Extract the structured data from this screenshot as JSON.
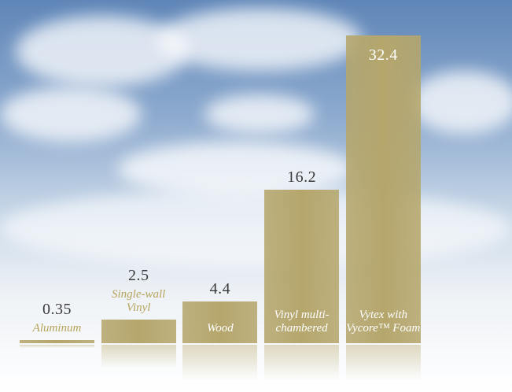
{
  "chart_data": {
    "type": "bar",
    "categories": [
      "Aluminum",
      "Single-wall Vinyl",
      "Wood",
      "Vinyl multi-chambered",
      "Vytex with Vycore™ Foam"
    ],
    "values": [
      0.35,
      2.5,
      4.4,
      16.2,
      32.4
    ],
    "value_labels": [
      "0.35",
      "2.5",
      "4.4",
      "16.2",
      "32.4"
    ],
    "color": "#b5a66c"
  }
}
